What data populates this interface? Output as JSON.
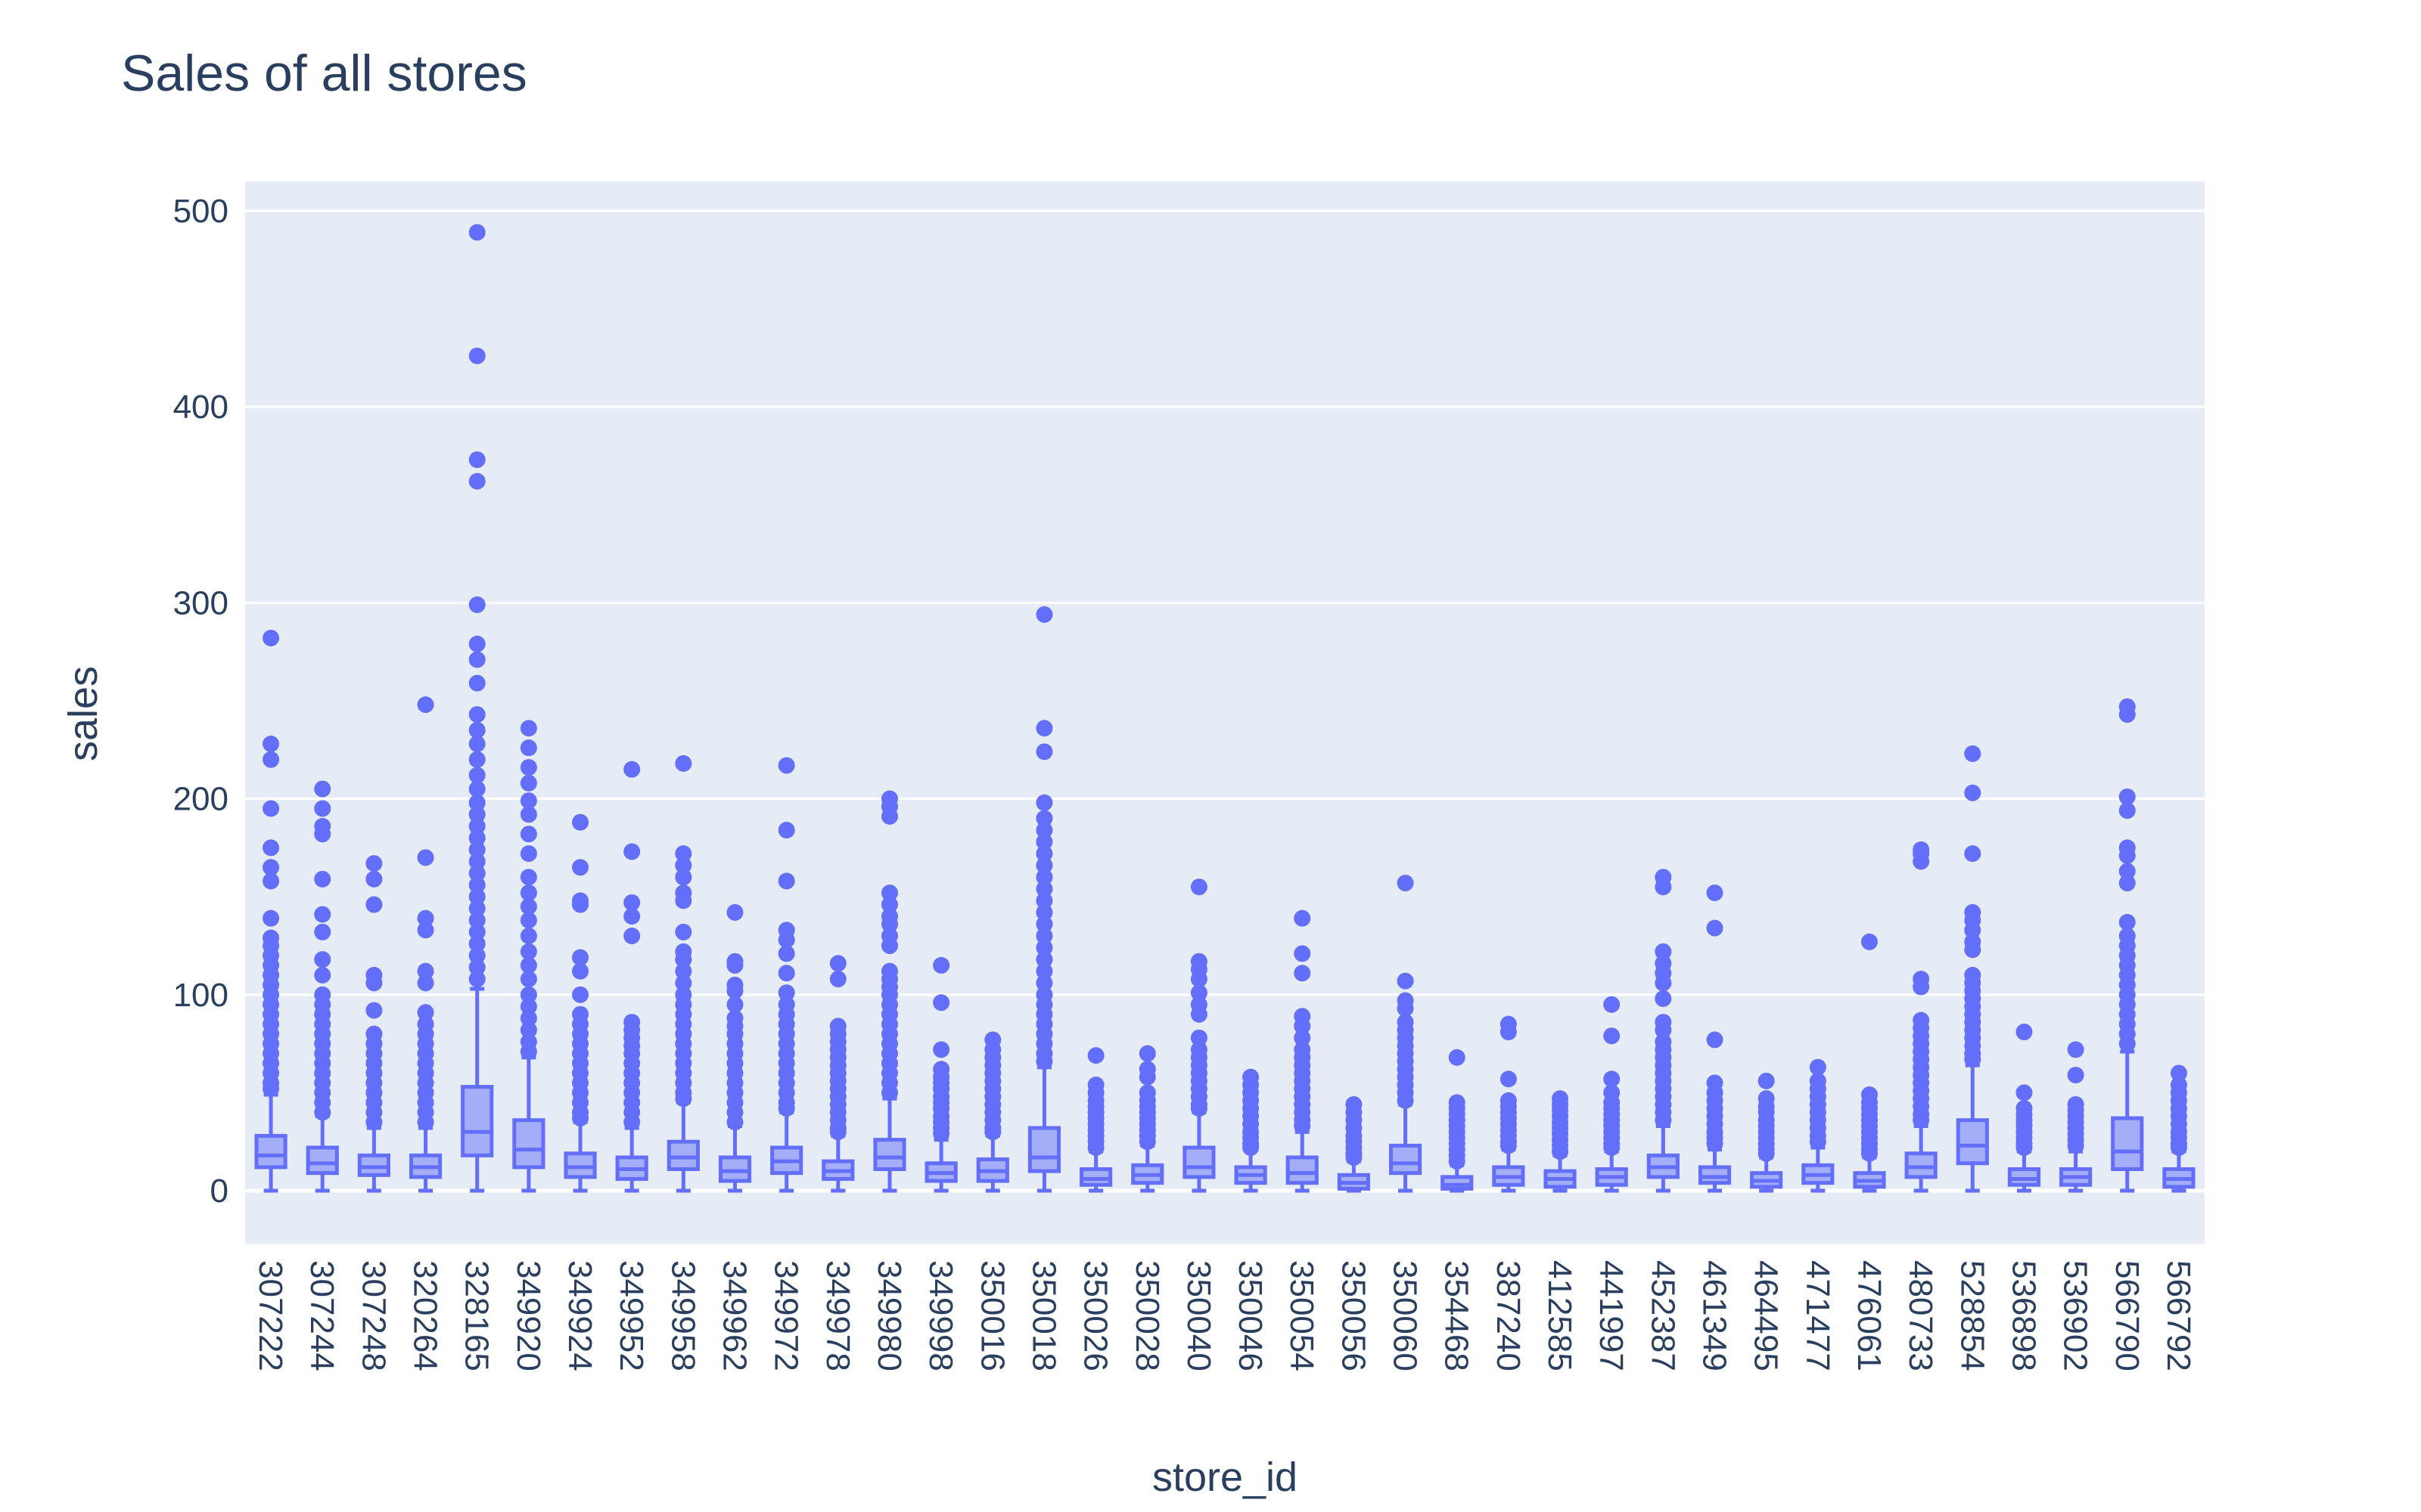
{
  "chart_data": {
    "type": "box",
    "title": "Sales of all stores",
    "xlabel": "store_id",
    "ylabel": "sales",
    "ylim": [
      -27,
      515
    ],
    "yticks": [
      0,
      100,
      200,
      300,
      400,
      500
    ],
    "grid": true,
    "legend": "none",
    "colors": {
      "plot_bg": "#e5ecf6",
      "grid": "#ffffff",
      "box": "#636efa"
    },
    "boxes": [
      {
        "store_id": "307222",
        "min": 0,
        "q1": 12,
        "median": 18,
        "q3": 28,
        "upper_fence": 49,
        "outliers": [
          282,
          228,
          220,
          195,
          175,
          165,
          158,
          139,
          129,
          125,
          120,
          115,
          110,
          105,
          100,
          95,
          90,
          85,
          80,
          75,
          70,
          65,
          60,
          55,
          52
        ]
      },
      {
        "store_id": "307244",
        "min": 0,
        "q1": 9,
        "median": 14,
        "q3": 22,
        "upper_fence": 38,
        "outliers": [
          205,
          195,
          186,
          182,
          159,
          141,
          132,
          118,
          110,
          100,
          95,
          90,
          85,
          80,
          75,
          70,
          65,
          60,
          55,
          50,
          45,
          40
        ]
      },
      {
        "store_id": "307248",
        "min": 0,
        "q1": 8,
        "median": 12,
        "q3": 18,
        "upper_fence": 32,
        "outliers": [
          167,
          159,
          146,
          110,
          106,
          92,
          80,
          75,
          70,
          65,
          60,
          55,
          50,
          45,
          40,
          35
        ]
      },
      {
        "store_id": "320264",
        "min": 0,
        "q1": 7,
        "median": 12,
        "q3": 18,
        "upper_fence": 32,
        "outliers": [
          248,
          170,
          139,
          133,
          112,
          106,
          91,
          85,
          80,
          75,
          70,
          65,
          60,
          55,
          50,
          45,
          40,
          35
        ]
      },
      {
        "store_id": "328165",
        "min": 0,
        "q1": 18,
        "median": 30,
        "q3": 53,
        "upper_fence": 103,
        "outliers": [
          489,
          426,
          373,
          362,
          299,
          279,
          271,
          259,
          243,
          235,
          228,
          220,
          212,
          205,
          198,
          192,
          186,
          180,
          174,
          168,
          162,
          156,
          150,
          144,
          138,
          132,
          126,
          120,
          114,
          108
        ]
      },
      {
        "store_id": "349920",
        "min": 0,
        "q1": 12,
        "median": 21,
        "q3": 36,
        "upper_fence": 68,
        "outliers": [
          236,
          226,
          216,
          208,
          199,
          192,
          182,
          172,
          160,
          152,
          145,
          138,
          130,
          122,
          115,
          108,
          100,
          94,
          88,
          82,
          76,
          71
        ]
      },
      {
        "store_id": "349924",
        "min": 0,
        "q1": 7,
        "median": 12,
        "q3": 19,
        "upper_fence": 35,
        "outliers": [
          188,
          165,
          148,
          146,
          119,
          112,
          100,
          90,
          85,
          80,
          75,
          70,
          65,
          60,
          55,
          50,
          45,
          40,
          37
        ]
      },
      {
        "store_id": "349952",
        "min": 0,
        "q1": 6,
        "median": 11,
        "q3": 17,
        "upper_fence": 32,
        "outliers": [
          215,
          173,
          147,
          140,
          130,
          86,
          82,
          78,
          74,
          70,
          65,
          60,
          55,
          50,
          45,
          40,
          35
        ]
      },
      {
        "store_id": "349958",
        "min": 0,
        "q1": 11,
        "median": 17,
        "q3": 25,
        "upper_fence": 45,
        "outliers": [
          218,
          172,
          166,
          160,
          152,
          148,
          132,
          122,
          118,
          112,
          106,
          100,
          95,
          90,
          85,
          80,
          75,
          70,
          65,
          60,
          55,
          50,
          47
        ]
      },
      {
        "store_id": "349962",
        "min": 0,
        "q1": 5,
        "median": 10,
        "q3": 17,
        "upper_fence": 33,
        "outliers": [
          142,
          117,
          115,
          105,
          102,
          95,
          88,
          84,
          80,
          75,
          70,
          65,
          60,
          55,
          50,
          45,
          40,
          35
        ]
      },
      {
        "store_id": "349972",
        "min": 0,
        "q1": 9,
        "median": 15,
        "q3": 22,
        "upper_fence": 40,
        "outliers": [
          217,
          184,
          158,
          133,
          128,
          121,
          111,
          101,
          95,
          90,
          85,
          80,
          75,
          70,
          65,
          60,
          55,
          50,
          45,
          42
        ]
      },
      {
        "store_id": "349978",
        "min": 0,
        "q1": 6,
        "median": 10,
        "q3": 15,
        "upper_fence": 28,
        "outliers": [
          116,
          108,
          84,
          80,
          76,
          72,
          68,
          64,
          60,
          56,
          52,
          48,
          44,
          40,
          36,
          32,
          30
        ]
      },
      {
        "store_id": "349980",
        "min": 0,
        "q1": 11,
        "median": 17,
        "q3": 26,
        "upper_fence": 47,
        "outliers": [
          200,
          196,
          191,
          152,
          146,
          140,
          136,
          130,
          125,
          112,
          108,
          104,
          100,
          95,
          90,
          85,
          80,
          75,
          70,
          65,
          60,
          55,
          50
        ]
      },
      {
        "store_id": "349998",
        "min": 0,
        "q1": 5,
        "median": 9,
        "q3": 14,
        "upper_fence": 26,
        "outliers": [
          115,
          96,
          72,
          62,
          58,
          55,
          52,
          48,
          45,
          42,
          38,
          35,
          32,
          29
        ]
      },
      {
        "store_id": "350016",
        "min": 0,
        "q1": 5,
        "median": 10,
        "q3": 16,
        "upper_fence": 28,
        "outliers": [
          77,
          72,
          68,
          64,
          60,
          56,
          52,
          48,
          44,
          40,
          36,
          32,
          30
        ]
      },
      {
        "store_id": "350018",
        "min": 0,
        "q1": 10,
        "median": 17,
        "q3": 32,
        "upper_fence": 63,
        "outliers": [
          294,
          236,
          224,
          198,
          190,
          184,
          178,
          172,
          166,
          160,
          154,
          148,
          142,
          136,
          130,
          124,
          118,
          112,
          106,
          100,
          95,
          90,
          85,
          80,
          75,
          70,
          66
        ]
      },
      {
        "store_id": "350026",
        "min": 0,
        "q1": 3,
        "median": 6,
        "q3": 11,
        "upper_fence": 20,
        "outliers": [
          69,
          54,
          50,
          46,
          43,
          40,
          37,
          34,
          31,
          28,
          25,
          22
        ]
      },
      {
        "store_id": "350028",
        "min": 0,
        "q1": 4,
        "median": 8,
        "q3": 13,
        "upper_fence": 23,
        "outliers": [
          70,
          62,
          58,
          50,
          46,
          43,
          40,
          37,
          34,
          31,
          28,
          25
        ]
      },
      {
        "store_id": "350040",
        "min": 0,
        "q1": 7,
        "median": 12,
        "q3": 22,
        "upper_fence": 40,
        "outliers": [
          155,
          117,
          113,
          108,
          101,
          95,
          90,
          78,
          72,
          68,
          64,
          60,
          56,
          52,
          48,
          44,
          42
        ]
      },
      {
        "store_id": "350046",
        "min": 0,
        "q1": 4,
        "median": 8,
        "q3": 12,
        "upper_fence": 21,
        "outliers": [
          58,
          54,
          50,
          46,
          42,
          38,
          34,
          30,
          27,
          24,
          22
        ]
      },
      {
        "store_id": "350054",
        "min": 0,
        "q1": 4,
        "median": 9,
        "q3": 17,
        "upper_fence": 30,
        "outliers": [
          139,
          121,
          111,
          89,
          84,
          78,
          72,
          68,
          64,
          60,
          56,
          52,
          48,
          44,
          40,
          36,
          33
        ]
      },
      {
        "store_id": "350056",
        "min": 0,
        "q1": 1,
        "median": 4,
        "q3": 8,
        "upper_fence": 15,
        "outliers": [
          44,
          40,
          36,
          32,
          28,
          25,
          22,
          19,
          17
        ]
      },
      {
        "store_id": "350060",
        "min": 0,
        "q1": 9,
        "median": 14,
        "q3": 23,
        "upper_fence": 44,
        "outliers": [
          157,
          107,
          97,
          93,
          86,
          82,
          78,
          74,
          70,
          66,
          62,
          58,
          54,
          50,
          46
        ]
      },
      {
        "store_id": "354468",
        "min": 0,
        "q1": 1,
        "median": 3,
        "q3": 7,
        "upper_fence": 13,
        "outliers": [
          68,
          45,
          42,
          39,
          36,
          33,
          30,
          27,
          24,
          21,
          18,
          15
        ]
      },
      {
        "store_id": "387240",
        "min": 0,
        "q1": 3,
        "median": 7,
        "q3": 12,
        "upper_fence": 21,
        "outliers": [
          85,
          81,
          57,
          46,
          43,
          40,
          37,
          34,
          31,
          28,
          25,
          23
        ]
      },
      {
        "store_id": "412585",
        "min": 0,
        "q1": 2,
        "median": 6,
        "q3": 10,
        "upper_fence": 18,
        "outliers": [
          47,
          44,
          41,
          38,
          35,
          32,
          29,
          26,
          23,
          20
        ]
      },
      {
        "store_id": "441997",
        "min": 0,
        "q1": 3,
        "median": 7,
        "q3": 11,
        "upper_fence": 20,
        "outliers": [
          95,
          79,
          57,
          50,
          45,
          42,
          39,
          36,
          33,
          30,
          27,
          24,
          22
        ]
      },
      {
        "store_id": "452387",
        "min": 0,
        "q1": 7,
        "median": 12,
        "q3": 18,
        "upper_fence": 33,
        "outliers": [
          160,
          155,
          122,
          116,
          111,
          106,
          98,
          86,
          82,
          76,
          72,
          68,
          64,
          60,
          56,
          52,
          48,
          44,
          40,
          36
        ]
      },
      {
        "store_id": "461349",
        "min": 0,
        "q1": 4,
        "median": 7,
        "q3": 12,
        "upper_fence": 21,
        "outliers": [
          152,
          134,
          77,
          55,
          50,
          46,
          42,
          38,
          34,
          30,
          27,
          24
        ]
      },
      {
        "store_id": "464495",
        "min": 0,
        "q1": 2,
        "median": 5,
        "q3": 9,
        "upper_fence": 17,
        "outliers": [
          56,
          47,
          43,
          40,
          36,
          33,
          30,
          27,
          24,
          21,
          19
        ]
      },
      {
        "store_id": "471477",
        "min": 0,
        "q1": 4,
        "median": 8,
        "q3": 13,
        "upper_fence": 22,
        "outliers": [
          63,
          56,
          52,
          48,
          44,
          40,
          36,
          32,
          28,
          25
        ]
      },
      {
        "store_id": "476061",
        "min": 0,
        "q1": 2,
        "median": 5,
        "q3": 9,
        "upper_fence": 17,
        "outliers": [
          127,
          49,
          45,
          42,
          39,
          36,
          33,
          30,
          27,
          24,
          21,
          19
        ]
      },
      {
        "store_id": "480733",
        "min": 0,
        "q1": 7,
        "median": 12,
        "q3": 19,
        "upper_fence": 33,
        "outliers": [
          174,
          172,
          168,
          108,
          104,
          87,
          83,
          79,
          75,
          71,
          67,
          63,
          59,
          55,
          51,
          47,
          43,
          39,
          36
        ]
      },
      {
        "store_id": "528854",
        "min": 0,
        "q1": 14,
        "median": 23,
        "q3": 36,
        "upper_fence": 64,
        "outliers": [
          223,
          203,
          172,
          142,
          138,
          133,
          127,
          123,
          110,
          106,
          102,
          98,
          94,
          90,
          86,
          82,
          78,
          74,
          70,
          67
        ]
      },
      {
        "store_id": "536898",
        "min": 0,
        "q1": 3,
        "median": 6,
        "q3": 11,
        "upper_fence": 20,
        "outliers": [
          81,
          50,
          42,
          39,
          36,
          33,
          30,
          27,
          24,
          22
        ]
      },
      {
        "store_id": "536902",
        "min": 0,
        "q1": 3,
        "median": 7,
        "q3": 11,
        "upper_fence": 20,
        "outliers": [
          72,
          59,
          44,
          41,
          38,
          35,
          32,
          29,
          26,
          23
        ]
      },
      {
        "store_id": "566790",
        "min": 0,
        "q1": 11,
        "median": 20,
        "q3": 37,
        "upper_fence": 71,
        "outliers": [
          247,
          243,
          201,
          194,
          175,
          171,
          163,
          157,
          137,
          130,
          125,
          120,
          115,
          110,
          105,
          100,
          95,
          90,
          85,
          80,
          75
        ]
      },
      {
        "store_id": "566792",
        "min": 0,
        "q1": 2,
        "median": 6,
        "q3": 11,
        "upper_fence": 20,
        "outliers": [
          60,
          54,
          50,
          46,
          42,
          38,
          34,
          30,
          27,
          24,
          22
        ]
      }
    ]
  }
}
